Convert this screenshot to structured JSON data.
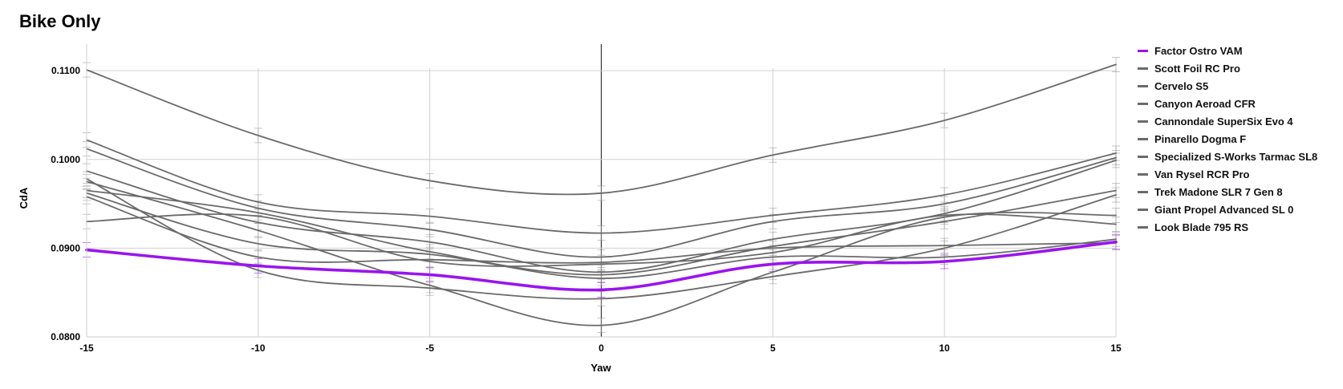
{
  "chart_data": {
    "type": "line",
    "title": "Bike Only",
    "xlabel": "Yaw",
    "ylabel": "CdA",
    "xlim": [
      -15,
      15
    ],
    "ylim": [
      0.08,
      0.113
    ],
    "x": [
      -15,
      -10,
      -5,
      0,
      5,
      10,
      15
    ],
    "xticks": [
      "-15",
      "-10",
      "-5",
      "0",
      "5",
      "10",
      "15"
    ],
    "yticks": [
      0.08,
      0.09,
      0.1,
      0.11
    ],
    "ytick_labels": [
      "0.0800",
      "0.0900",
      "0.1000",
      "0.1100"
    ],
    "grid": true,
    "error_bars": true,
    "legend_position": "right",
    "highlight_color": "#9a14ee",
    "other_color": "#6a6a6a",
    "series": [
      {
        "name": "Factor Ostro VAM",
        "highlight": true,
        "values": [
          0.0898,
          0.088,
          0.087,
          0.0853,
          0.0882,
          0.0885,
          0.0907
        ]
      },
      {
        "name": "Scott Foil RC Pro",
        "values": [
          0.1101,
          0.1027,
          0.0976,
          0.0962,
          0.1005,
          0.1044,
          0.1107
        ]
      },
      {
        "name": "Cervelo S5",
        "values": [
          0.1022,
          0.0952,
          0.0936,
          0.0917,
          0.0937,
          0.096,
          0.1007
        ]
      },
      {
        "name": "Canyon Aeroad CFR",
        "values": [
          0.1012,
          0.0945,
          0.0921,
          0.089,
          0.093,
          0.095,
          0.1002
        ]
      },
      {
        "name": "Cannondale SuperSix Evo 4",
        "values": [
          0.0987,
          0.0929,
          0.0907,
          0.0873,
          0.091,
          0.0939,
          0.0999
        ]
      },
      {
        "name": "Pinarello Dogma F",
        "values": [
          0.0965,
          0.094,
          0.0896,
          0.087,
          0.0902,
          0.093,
          0.0965
        ]
      },
      {
        "name": "Specialized S-Works Tarmac SL8",
        "values": [
          0.093,
          0.0936,
          0.0885,
          0.0882,
          0.0895,
          0.0937,
          0.0927
        ]
      },
      {
        "name": "Van Rysel RCR Pro",
        "values": [
          0.0962,
          0.0905,
          0.0893,
          0.0866,
          0.089,
          0.089,
          0.091
        ]
      },
      {
        "name": "Trek Madone SLR 7 Gen 8",
        "values": [
          0.0958,
          0.089,
          0.0887,
          0.0884,
          0.09,
          0.0903,
          0.0906
        ]
      },
      {
        "name": "Giant Propel Advanced SL 0",
        "values": [
          0.0978,
          0.0875,
          0.0855,
          0.0843,
          0.0868,
          0.09,
          0.096
        ]
      },
      {
        "name": "Look Blade 795 RS",
        "values": [
          0.0975,
          0.092,
          0.0858,
          0.0813,
          0.0873,
          0.0935,
          0.0937
        ]
      }
    ]
  }
}
